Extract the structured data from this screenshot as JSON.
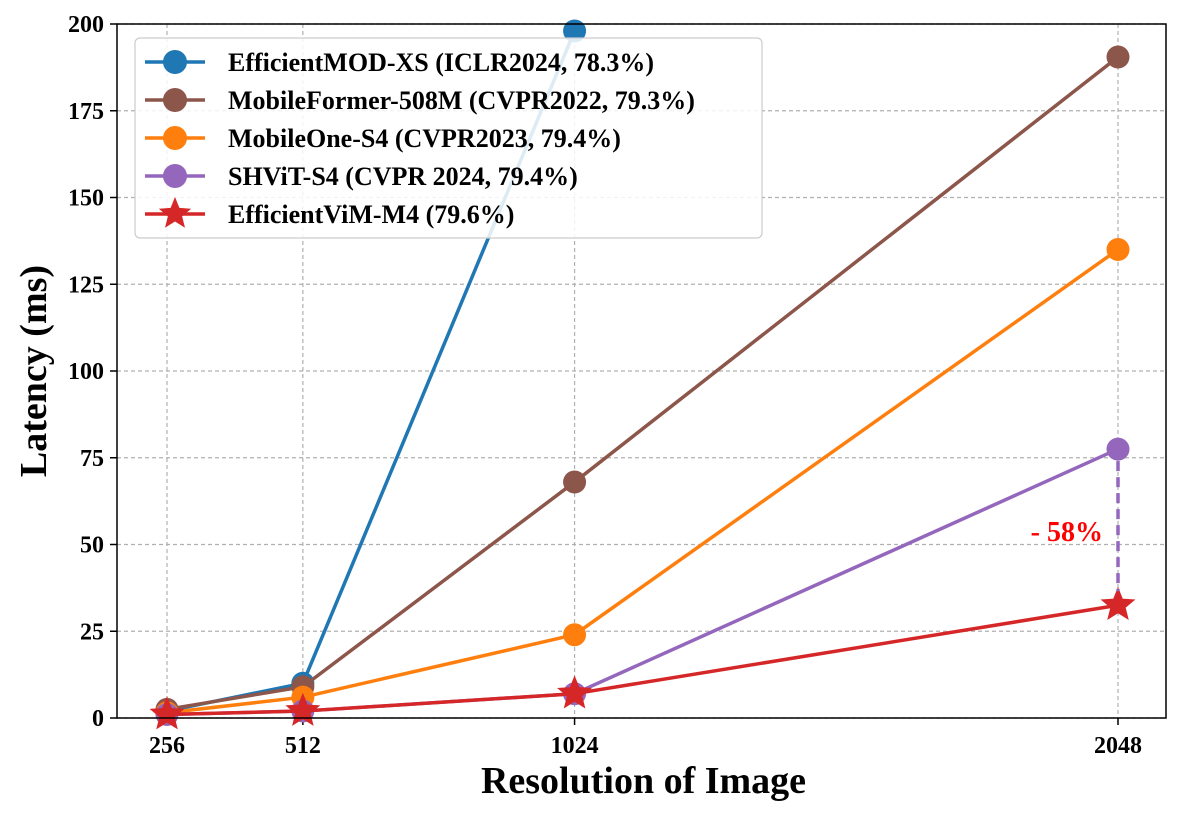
{
  "chart_data": {
    "type": "line",
    "title": "",
    "xlabel": "Resolution of Image",
    "ylabel": "Latency (ms)",
    "x": [
      256,
      512,
      1024,
      2048
    ],
    "x_tick_labels": [
      "256",
      "512",
      "1024",
      "2048"
    ],
    "xlim": [
      256,
      2048
    ],
    "ylim": [
      0,
      200
    ],
    "y_ticks": [
      0,
      25,
      50,
      75,
      100,
      125,
      150,
      175,
      200
    ],
    "grid": true,
    "legend_position": "top-left",
    "series": [
      {
        "name": "EfficientMOD-XS (ICLR2024, 78.3%)",
        "color": "#1f77b4",
        "marker": "circle",
        "x": [
          256,
          512,
          1024
        ],
        "values": [
          2,
          10,
          198
        ]
      },
      {
        "name": "MobileFormer-508M (CVPR2022, 79.3%)",
        "color": "#8c564b",
        "marker": "circle",
        "x": [
          256,
          512,
          1024,
          2048
        ],
        "values": [
          2.5,
          9,
          68,
          190.5
        ]
      },
      {
        "name": "MobileOne-S4 (CVPR2023, 79.4%)",
        "color": "#ff7f0e",
        "marker": "circle",
        "x": [
          256,
          512,
          1024,
          2048
        ],
        "values": [
          1.5,
          6,
          24,
          135
        ]
      },
      {
        "name": "SHViT-S4 (CVPR 2024, 79.4%)",
        "color": "#9467bd",
        "marker": "circle",
        "x": [
          256,
          512,
          1024,
          2048
        ],
        "values": [
          1,
          2,
          7,
          77.5
        ]
      },
      {
        "name": "EfficientViM-M4 (79.6%)",
        "color": "#d62728",
        "marker": "star",
        "x": [
          256,
          512,
          1024,
          2048
        ],
        "values": [
          1,
          2,
          7,
          32.5
        ]
      }
    ],
    "annotations": [
      {
        "text": "- 58%",
        "color": "#ff0000",
        "x": 2048,
        "from_value": 77.5,
        "to_value": 32.5,
        "line_color": "#9467bd",
        "line_style": "dashed"
      }
    ]
  }
}
